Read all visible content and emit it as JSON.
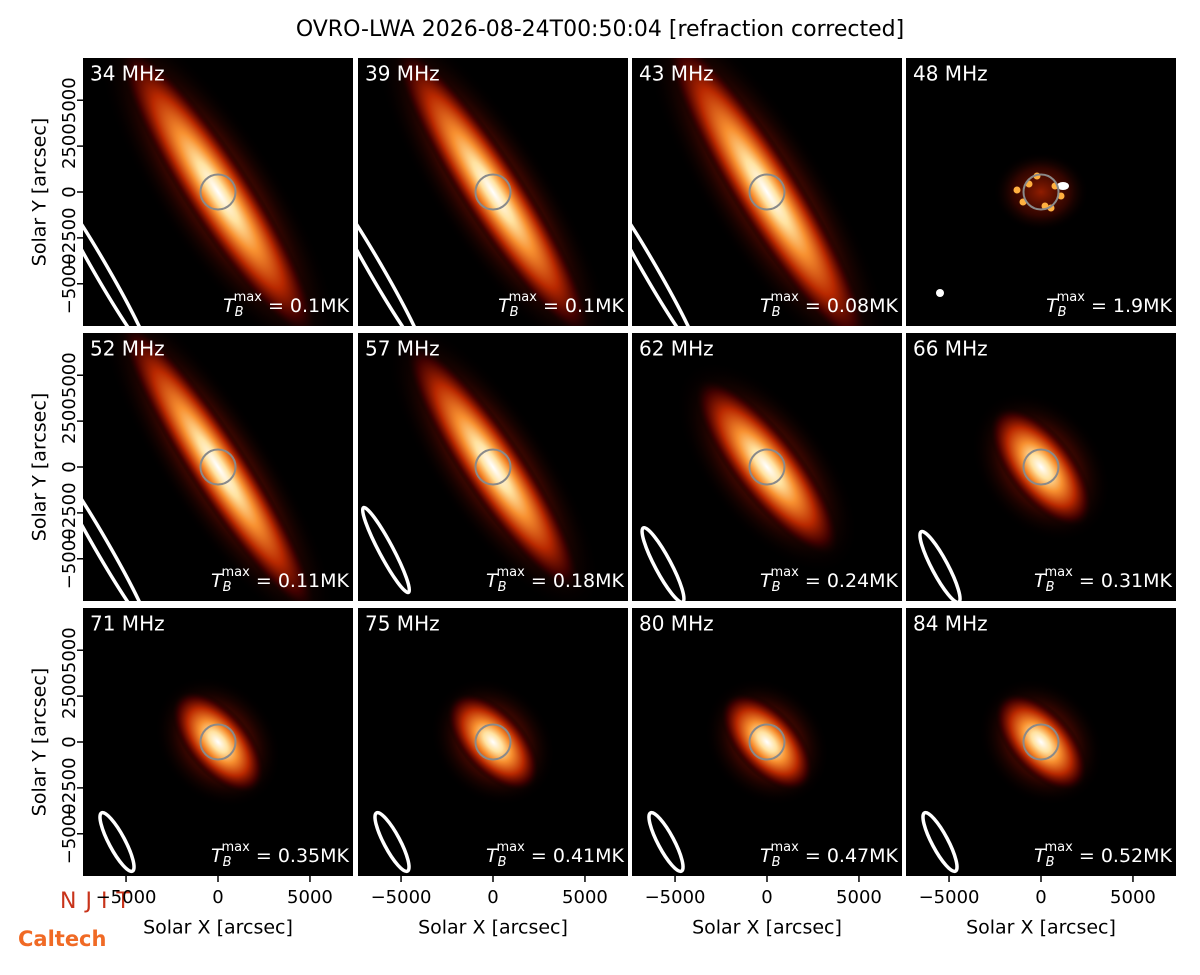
{
  "chart_data": {
    "type": "image_grid",
    "title": "OVRO-LWA 2026-08-24T00:50:04 [refraction corrected]",
    "xlabel": "Solar X [arcsec]",
    "ylabel": "Solar Y [arcsec]",
    "xlim": [
      -7340,
      7340
    ],
    "ylim": [
      -7300,
      7300
    ],
    "xticks": [
      {
        "value": -5000,
        "label": "−5000"
      },
      0,
      5000
    ],
    "yticks": [
      {
        "value": -5000,
        "label": "−5000"
      },
      {
        "value": -2500,
        "label": "−2500"
      },
      0,
      2500,
      5000
    ],
    "tb_symbol": "T",
    "tb_sub": "B",
    "tb_sup": "max",
    "panels": [
      {
        "label": "34 MHz",
        "tmax_label": " = 0.1MK"
      },
      {
        "label": "39 MHz",
        "tmax_label": " = 0.1MK"
      },
      {
        "label": "43 MHz",
        "tmax_label": " = 0.08MK"
      },
      {
        "label": "48 MHz",
        "tmax_label": " = 1.9MK"
      },
      {
        "label": "52 MHz",
        "tmax_label": " = 0.11MK"
      },
      {
        "label": "57 MHz",
        "tmax_label": " = 0.18MK"
      },
      {
        "label": "62 MHz",
        "tmax_label": " = 0.24MK"
      },
      {
        "label": "66 MHz",
        "tmax_label": " = 0.31MK"
      },
      {
        "label": "71 MHz",
        "tmax_label": " = 0.35MK"
      },
      {
        "label": "75 MHz",
        "tmax_label": " = 0.41MK"
      },
      {
        "label": "80 MHz",
        "tmax_label": " = 0.47MK"
      },
      {
        "label": "84 MHz",
        "tmax_label": " = 0.52MK"
      }
    ]
  },
  "logos": {
    "njit": "NJIT",
    "caltech": "Caltech"
  }
}
